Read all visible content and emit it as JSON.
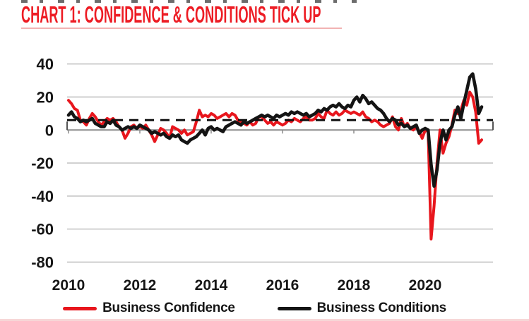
{
  "title": {
    "text": "CHART 1: CONFIDENCE & CONDITIONS TICK UP",
    "color": "#ed1c24"
  },
  "chart_data": {
    "type": "line",
    "title": "CHART 1: CONFIDENCE & CONDITIONS TICK UP",
    "x_start_year": 2010,
    "x_step_months": 1,
    "xticks": [
      2010,
      2012,
      2014,
      2016,
      2018,
      2020
    ],
    "yticks": [
      40,
      20,
      0,
      -20,
      -40,
      -60,
      -80
    ],
    "ylim": [
      -80,
      40
    ],
    "grid": "horizontal",
    "legend_position": "bottom",
    "axis_text_color": "#161616",
    "gridline_color": "#bcbcbc",
    "zeroline_color": "#8c8c8c",
    "average_line": {
      "value": 6,
      "style": "dashed",
      "color": "#111111"
    },
    "series": [
      {
        "name": "Business Confidence",
        "color": "#e8161d",
        "values": [
          18,
          16,
          13,
          12,
          6,
          5,
          3,
          7,
          10,
          8,
          5,
          3,
          5,
          7,
          6,
          7,
          5,
          2,
          0,
          -5,
          -2,
          2,
          3,
          1,
          2,
          1,
          3,
          0,
          -3,
          -7,
          -3,
          1,
          0,
          -2,
          -5,
          2,
          1,
          0,
          -2,
          0,
          -3,
          -2,
          -1,
          5,
          12,
          8,
          9,
          8,
          10,
          9,
          7,
          8,
          9,
          10,
          8,
          10,
          9,
          6,
          5,
          4,
          3,
          5,
          3,
          4,
          8,
          8,
          6,
          4,
          5,
          3,
          5,
          4,
          3,
          4,
          6,
          5,
          7,
          6,
          5,
          7,
          8,
          6,
          6,
          7,
          10,
          8,
          7,
          12,
          10,
          9,
          11,
          9,
          10,
          12,
          11,
          10,
          11,
          10,
          9,
          11,
          8,
          7,
          5,
          6,
          5,
          3,
          2,
          3,
          4,
          8,
          2,
          0,
          7,
          2,
          4,
          1,
          0,
          2,
          -1,
          -5,
          0,
          -1,
          -66,
          -46,
          -20,
          0,
          -14,
          -8,
          -4,
          3,
          12,
          10,
          12,
          18,
          15,
          23,
          20,
          11,
          -8,
          -6
        ]
      },
      {
        "name": "Business Conditions",
        "color": "#141414",
        "values": [
          9,
          11,
          8,
          7,
          5,
          6,
          5,
          6,
          7,
          4,
          3,
          2,
          2,
          5,
          4,
          6,
          3,
          2,
          0,
          1,
          2,
          1,
          2,
          1,
          3,
          2,
          1,
          0,
          -2,
          -1,
          -2,
          -3,
          -2,
          -4,
          -5,
          -3,
          -4,
          -3,
          -6,
          -7,
          -8,
          -6,
          -5,
          -4,
          -2,
          0,
          -3,
          1,
          2,
          0,
          1,
          0,
          -1,
          2,
          3,
          4,
          5,
          4,
          3,
          5,
          4,
          5,
          6,
          7,
          8,
          9,
          8,
          9,
          8,
          7,
          9,
          8,
          9,
          10,
          9,
          11,
          10,
          11,
          10,
          9,
          10,
          8,
          9,
          10,
          12,
          11,
          13,
          12,
          14,
          15,
          14,
          16,
          14,
          13,
          15,
          14,
          18,
          20,
          17,
          21,
          19,
          16,
          17,
          15,
          13,
          12,
          10,
          7,
          5,
          7,
          6,
          3,
          4,
          2,
          3,
          1,
          2,
          3,
          -2,
          0,
          1,
          0,
          -21,
          -34,
          -24,
          -8,
          0,
          -6,
          0,
          2,
          9,
          14,
          7,
          16,
          24,
          32,
          34,
          25,
          10,
          14
        ]
      }
    ]
  }
}
